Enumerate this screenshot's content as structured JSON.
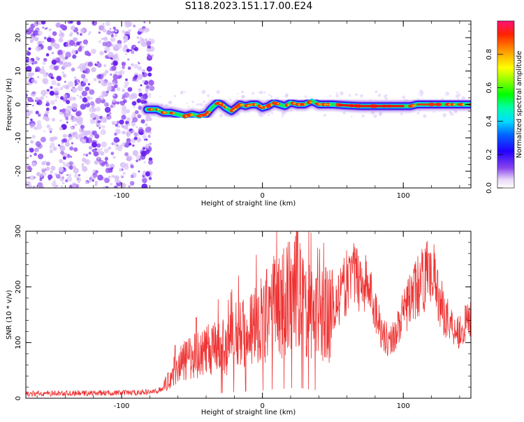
{
  "chart_data": [
    {
      "type": "heatmap",
      "title": "S118.2023.151.17.00.E24",
      "xlabel": "Height of straight line (km)",
      "ylabel": "Frequency (Hz)",
      "xlim": [
        -168,
        148
      ],
      "ylim": [
        -25,
        25
      ],
      "xticks": [
        -100,
        0,
        100
      ],
      "yticks": [
        -20,
        -10,
        0,
        10,
        20
      ],
      "colorbar": {
        "label": "Normalized spectral amplitude",
        "range": [
          0,
          1
        ],
        "ticks": [
          "0.0",
          "0.2",
          "0.4",
          "0.6",
          "0.8"
        ]
      },
      "ridge": {
        "x": [
          -82,
          -75,
          -70,
          -65,
          -60,
          -55,
          -50,
          -45,
          -40,
          -36,
          -32,
          -29,
          -26,
          -22,
          -19,
          -16,
          -12,
          -8,
          -4,
          0,
          4,
          8,
          12,
          16,
          20,
          25,
          30,
          35,
          40,
          50,
          60,
          70,
          80,
          90,
          100,
          105,
          110,
          120,
          130,
          140,
          148
        ],
        "y": [
          -1.5,
          -1.5,
          -2.5,
          -2.5,
          -3.0,
          -3.5,
          -3.0,
          -3.5,
          -3.0,
          -1.0,
          0.5,
          0.0,
          -1.0,
          -2.0,
          -1.0,
          0.0,
          -0.5,
          0.0,
          0.0,
          -1.0,
          -0.5,
          0.5,
          0.0,
          -0.5,
          0.5,
          0.0,
          0.0,
          1.0,
          0.0,
          0.0,
          -0.3,
          -0.5,
          -0.5,
          -0.5,
          -0.5,
          -0.5,
          0.0,
          0.0,
          0.0,
          0.0,
          0.0
        ]
      }
    },
    {
      "type": "line",
      "xlabel": "Height of straight line (km)",
      "ylabel": "SNR (10 * v/v)",
      "xlim": [
        -168,
        148
      ],
      "ylim": [
        0,
        300
      ],
      "xticks": [
        -100,
        0,
        100
      ],
      "yticks": [
        0,
        100,
        200,
        300
      ],
      "color": "#ee3333",
      "envelope": {
        "x": [
          -168,
          -130,
          -90,
          -75,
          -70,
          -65,
          -60,
          -50,
          -40,
          -30,
          -25,
          -20,
          -10,
          0,
          10,
          20,
          25,
          30,
          40,
          45,
          50,
          55,
          60,
          65,
          70,
          75,
          80,
          85,
          90,
          95,
          100,
          105,
          110,
          115,
          120,
          125,
          130,
          135,
          140,
          145,
          148
        ],
        "y": [
          8,
          9,
          10,
          12,
          20,
          40,
          60,
          75,
          85,
          95,
          90,
          110,
          130,
          140,
          165,
          180,
          195,
          170,
          140,
          150,
          160,
          180,
          210,
          220,
          215,
          200,
          160,
          120,
          100,
          120,
          150,
          180,
          200,
          215,
          240,
          180,
          150,
          130,
          120,
          135,
          145
        ]
      },
      "spikes": [
        [
          -27,
          85
        ],
        [
          25,
          300
        ],
        [
          30,
          220
        ],
        [
          38,
          215
        ],
        [
          45,
          235
        ],
        [
          -35,
          130
        ],
        [
          -47,
          145
        ],
        [
          118,
          260
        ],
        [
          -62,
          95
        ],
        [
          5,
          200
        ],
        [
          13,
          230
        ],
        [
          63,
          245
        ]
      ]
    }
  ]
}
